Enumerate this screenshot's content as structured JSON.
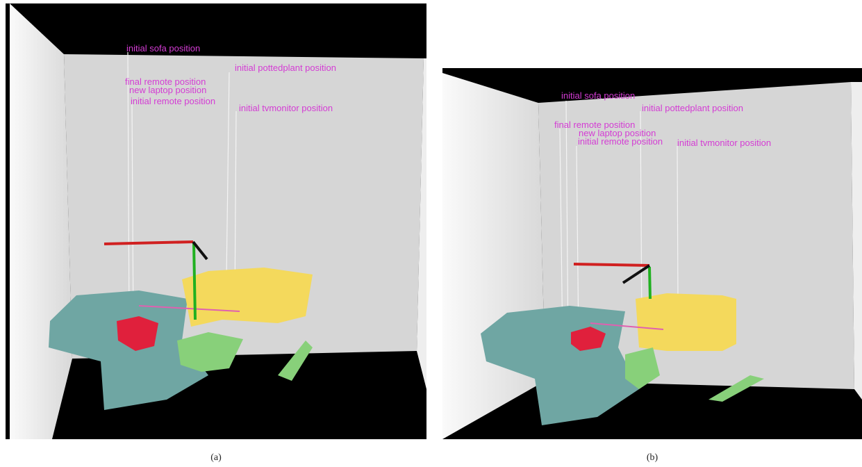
{
  "panels": [
    {
      "labels": [
        "initial sofa position",
        "initial pottedplant position",
        "final remote position",
        "new laptop position",
        "initial remote position",
        "initial tvmonitor position"
      ],
      "caption": "(a)"
    },
    {
      "labels": [
        "initial sofa position",
        "initial pottedplant position",
        "final remote position",
        "new laptop position",
        "initial remote position",
        "initial tvmonitor position"
      ],
      "caption": "(b)"
    }
  ]
}
